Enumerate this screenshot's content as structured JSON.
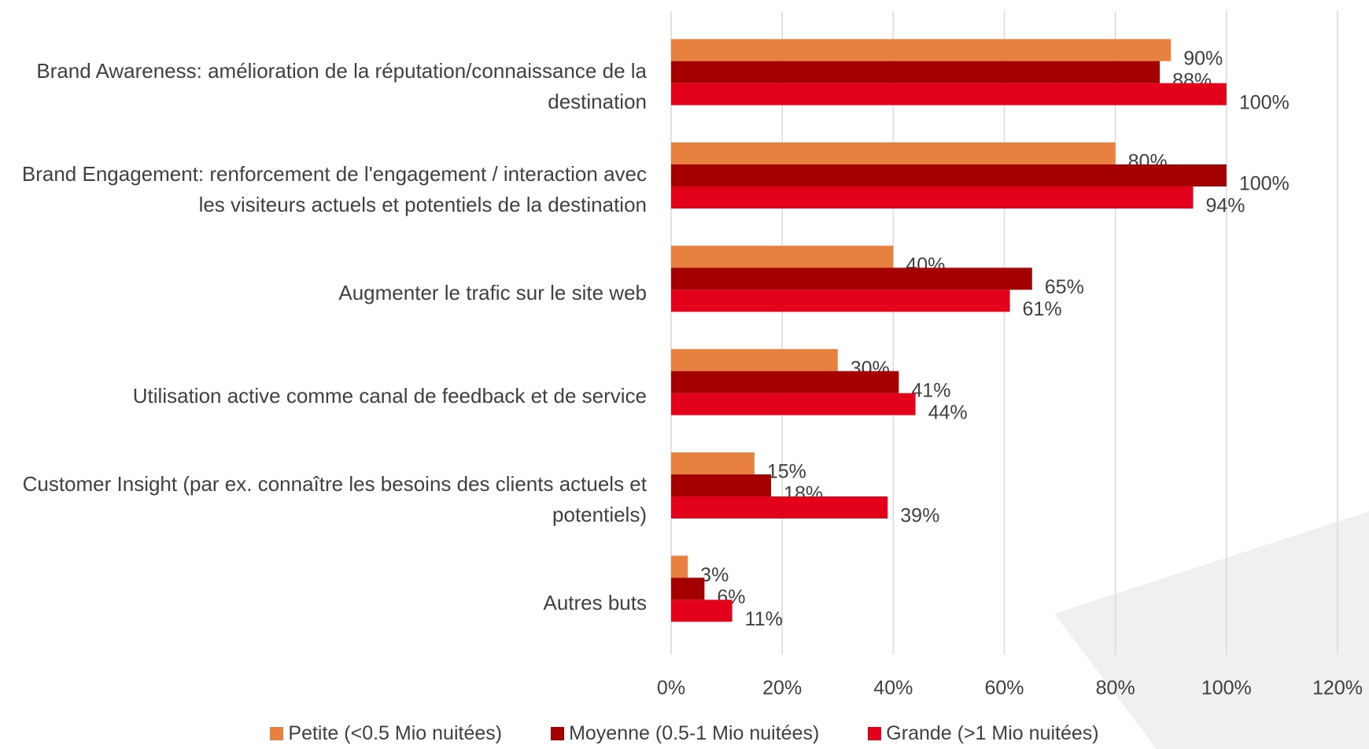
{
  "chart_data": {
    "type": "bar",
    "orientation": "horizontal",
    "categories": [
      "Brand Awareness: amélioration de la réputation/connaissance de la destination",
      "Brand Engagement: renforcement de l'engagement / interaction avec les visiteurs actuels et potentiels de la destination",
      "Augmenter le trafic sur le site web",
      "Utilisation active comme canal de feedback et de service",
      "Customer Insight (par ex. connaître les besoins des clients actuels et potentiels)",
      "Autres buts"
    ],
    "series": [
      {
        "name": "Petite (<0.5 Mio nuitées)",
        "color": "#E8803F",
        "values": [
          90,
          80,
          40,
          30,
          15,
          3
        ],
        "value_labels": [
          "90%",
          "80%",
          "40%",
          "30%",
          "15%",
          "3%"
        ]
      },
      {
        "name": "Moyenne  (0.5-1 Mio nuitées)",
        "color": "#A50000",
        "values": [
          88,
          100,
          65,
          41,
          18,
          6
        ],
        "value_labels": [
          "88%",
          "100%",
          "65%",
          "41%",
          "18%",
          "6%"
        ]
      },
      {
        "name": "Grande  (>1 Mio nuitées)",
        "color": "#E2001A",
        "values": [
          100,
          94,
          61,
          44,
          39,
          11
        ],
        "value_labels": [
          "100%",
          "94%",
          "61%",
          "44%",
          "39%",
          "11%"
        ]
      }
    ],
    "xlim": [
      0,
      120
    ],
    "xticks": [
      {
        "value": 0,
        "label": "0%"
      },
      {
        "value": 20,
        "label": "20%"
      },
      {
        "value": 40,
        "label": "40%"
      },
      {
        "value": 60,
        "label": "60%"
      },
      {
        "value": 80,
        "label": "80%"
      },
      {
        "value": 100,
        "label": "100%"
      },
      {
        "value": 120,
        "label": "120%"
      }
    ],
    "grid": true,
    "legend": "bottom"
  }
}
